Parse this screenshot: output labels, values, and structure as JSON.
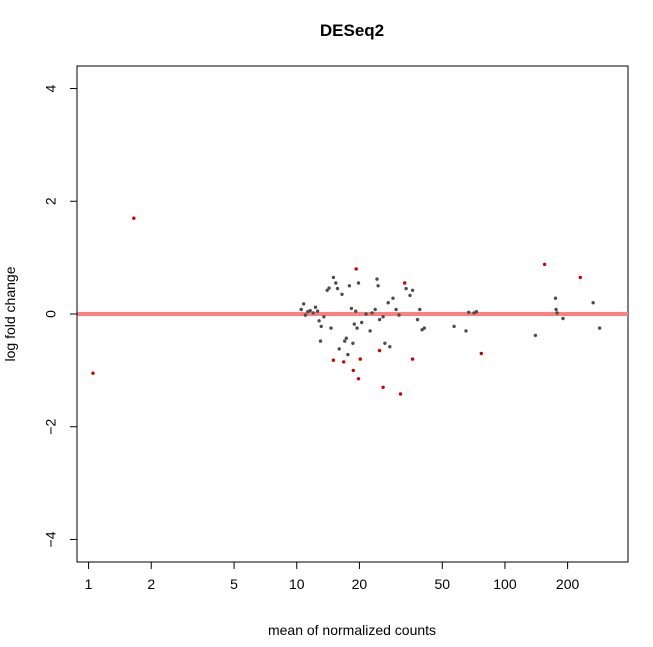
{
  "chart_data": {
    "type": "scatter",
    "title": "DESeq2",
    "xlabel": "mean of normalized counts",
    "ylabel": "log fold change",
    "x_scale": "log",
    "xlim": [
      0.88,
      390
    ],
    "ylim": [
      -4.4,
      4.4
    ],
    "x_ticks": [
      1,
      2,
      5,
      10,
      20,
      50,
      100,
      200
    ],
    "x_tick_labels": [
      "1",
      "2",
      "5",
      "10",
      "20",
      "50",
      "100",
      "200"
    ],
    "y_ticks": [
      -4,
      -2,
      0,
      2,
      4
    ],
    "y_tick_labels": [
      "−4",
      "−2",
      "0",
      "2",
      "4"
    ],
    "reference_line": {
      "y": 0,
      "color": "#ff7f7f"
    },
    "series": [
      {
        "name": "not significant",
        "color": "#4d4d4d",
        "points": [
          [
            10.5,
            0.08
          ],
          [
            10.8,
            0.18
          ],
          [
            11,
            -0.02
          ],
          [
            11.3,
            0.04
          ],
          [
            11.6,
            0.06
          ],
          [
            12,
            0.02
          ],
          [
            12.3,
            0.12
          ],
          [
            12.6,
            0.05
          ],
          [
            12.8,
            -0.12
          ],
          [
            13.1,
            -0.22
          ],
          [
            13.0,
            -0.48
          ],
          [
            13.5,
            -0.05
          ],
          [
            14.0,
            0.42
          ],
          [
            14.3,
            0.46
          ],
          [
            14.6,
            -0.25
          ],
          [
            15.0,
            0.65
          ],
          [
            15.4,
            0.55
          ],
          [
            15.7,
            0.45
          ],
          [
            16.0,
            -0.62
          ],
          [
            16.5,
            0.35
          ],
          [
            17.0,
            -0.48
          ],
          [
            17.3,
            -0.43
          ],
          [
            17.6,
            -0.72
          ],
          [
            17.9,
            0.5
          ],
          [
            18.3,
            0.1
          ],
          [
            18.6,
            -0.52
          ],
          [
            18.9,
            -0.18
          ],
          [
            19.2,
            0.05
          ],
          [
            19.5,
            -0.25
          ],
          [
            19.8,
            0.55
          ],
          [
            20.5,
            -0.15
          ],
          [
            21.5,
            0.0
          ],
          [
            22.5,
            -0.3
          ],
          [
            23.0,
            0.02
          ],
          [
            23.8,
            0.08
          ],
          [
            24.3,
            0.62
          ],
          [
            24.6,
            0.5
          ],
          [
            25.0,
            -0.1
          ],
          [
            26.0,
            -0.05
          ],
          [
            26.5,
            -0.52
          ],
          [
            27.5,
            0.2
          ],
          [
            28.0,
            -0.58
          ],
          [
            29.0,
            0.28
          ],
          [
            30.0,
            0.08
          ],
          [
            31.0,
            -0.02
          ],
          [
            33.5,
            0.45
          ],
          [
            35.0,
            0.33
          ],
          [
            36.0,
            0.42
          ],
          [
            38.0,
            -0.1
          ],
          [
            39.0,
            0.08
          ],
          [
            40.0,
            -0.28
          ],
          [
            41.0,
            -0.25
          ],
          [
            57.0,
            -0.22
          ],
          [
            65.0,
            -0.3
          ],
          [
            67.0,
            0.03
          ],
          [
            71.0,
            0.02
          ],
          [
            73.0,
            0.04
          ],
          [
            140.0,
            -0.38
          ],
          [
            175.0,
            0.28
          ],
          [
            176.0,
            0.08
          ],
          [
            178.0,
            0.02
          ],
          [
            190.0,
            -0.08
          ],
          [
            265.0,
            0.2
          ],
          [
            285.0,
            -0.25
          ]
        ]
      },
      {
        "name": "significant",
        "color": "#cc0000",
        "points": [
          [
            1.05,
            -1.05
          ],
          [
            1.65,
            1.7
          ],
          [
            15.0,
            -0.82
          ],
          [
            16.8,
            -0.85
          ],
          [
            18.7,
            -1.0
          ],
          [
            19.3,
            0.8
          ],
          [
            19.8,
            -1.15
          ],
          [
            20.2,
            -0.8
          ],
          [
            25.0,
            -0.65
          ],
          [
            26.0,
            -1.3
          ],
          [
            31.5,
            -1.42
          ],
          [
            33.0,
            0.55
          ],
          [
            36.0,
            -0.8
          ],
          [
            77.0,
            -0.7
          ],
          [
            155.0,
            0.88
          ],
          [
            230.0,
            0.65
          ]
        ]
      }
    ]
  }
}
